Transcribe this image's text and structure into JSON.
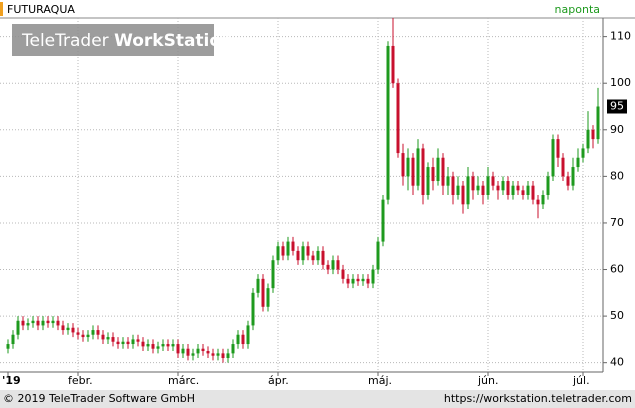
{
  "chart_data": {
    "type": "candlestick",
    "title": "FUTURAQUA",
    "interval": "naponta",
    "logo": {
      "light": "TeleTrader",
      "bold": "WorkStation"
    },
    "footer": {
      "copyright": "© 2019 TeleTrader Software GmbH",
      "url": "https://workstation.teletrader.com"
    },
    "up_color": "#1e9a1e",
    "down_color": "#c8102e",
    "grid": true,
    "ylim": [
      38,
      114
    ],
    "yticks": [
      40,
      50,
      60,
      70,
      80,
      90,
      100,
      110
    ],
    "categories": [
      "'19",
      null,
      null,
      null,
      null,
      null,
      null,
      null,
      null,
      null,
      null,
      null,
      null,
      null,
      "febr.",
      null,
      null,
      null,
      null,
      null,
      null,
      null,
      null,
      null,
      null,
      null,
      null,
      null,
      null,
      null,
      null,
      null,
      null,
      null,
      "márc.",
      null,
      null,
      null,
      null,
      null,
      null,
      null,
      null,
      null,
      null,
      null,
      null,
      null,
      null,
      null,
      null,
      null,
      null,
      null,
      "ápr.",
      null,
      null,
      null,
      null,
      null,
      null,
      null,
      null,
      null,
      null,
      null,
      null,
      null,
      null,
      null,
      null,
      null,
      null,
      null,
      "máj.",
      null,
      null,
      null,
      null,
      null,
      null,
      null,
      null,
      null,
      null,
      null,
      null,
      null,
      null,
      null,
      null,
      null,
      null,
      null,
      null,
      null,
      "jún.",
      null,
      null,
      null,
      null,
      null,
      null,
      null,
      null,
      null,
      null,
      null,
      null,
      null,
      null,
      null,
      null,
      null,
      null,
      "júl.",
      null,
      null,
      null
    ],
    "open": [
      43,
      44,
      46,
      49,
      48,
      48.5,
      49,
      48,
      49,
      48.5,
      49,
      48,
      47,
      47.5,
      46.5,
      46,
      45.5,
      46,
      47,
      46,
      45,
      45.5,
      44.5,
      44,
      44.5,
      44,
      45,
      44.5,
      43.5,
      44,
      43,
      43.5,
      44,
      43.5,
      44,
      42,
      43,
      41.5,
      42,
      43,
      42.5,
      42,
      41.5,
      42,
      41,
      42,
      44,
      46,
      44,
      48,
      55,
      58,
      52,
      56,
      62,
      65,
      63,
      66,
      64,
      62,
      65,
      63,
      62,
      64,
      61,
      60,
      62,
      60,
      58,
      57,
      58,
      57.5,
      58,
      57,
      60,
      66,
      75,
      108,
      100,
      85,
      80,
      84,
      78,
      86,
      76,
      82,
      79,
      84,
      78,
      80,
      76,
      78,
      74,
      80,
      77,
      78,
      76,
      80,
      78,
      77,
      79,
      76,
      78,
      77,
      76,
      78,
      75,
      74,
      76,
      80,
      88,
      84,
      80,
      78,
      82,
      84,
      86,
      90,
      88
    ],
    "high": [
      45,
      47,
      50,
      50,
      49.5,
      50,
      50,
      50,
      50,
      50,
      50,
      49,
      48.5,
      48.5,
      47.5,
      47,
      47,
      48,
      48,
      47,
      46.5,
      46.5,
      45.5,
      45.5,
      45.5,
      46,
      46,
      45.5,
      45,
      45,
      44.5,
      45,
      45,
      45,
      45,
      44,
      44,
      43,
      44,
      44,
      43.5,
      43,
      43,
      43,
      43,
      45,
      47,
      47,
      49,
      56,
      59,
      59,
      57,
      63,
      66,
      66,
      67,
      67,
      65,
      66,
      66,
      64,
      65,
      65,
      62,
      63,
      63,
      61,
      59,
      59,
      59,
      59,
      59,
      61,
      67,
      76,
      109,
      114,
      101,
      87,
      86,
      85,
      88,
      87,
      83,
      84,
      86,
      85,
      82,
      81,
      80,
      79,
      82,
      81,
      80,
      79,
      82,
      81,
      79,
      80,
      80,
      79,
      79,
      78,
      79,
      79,
      76,
      77,
      81,
      89,
      89,
      85,
      81,
      84,
      86,
      87,
      94,
      91,
      99
    ],
    "low": [
      42,
      43,
      45,
      47,
      47,
      47.5,
      47,
      47,
      47.5,
      47.5,
      47,
      46,
      46,
      45.5,
      45,
      44.5,
      44.5,
      45,
      45,
      44,
      44,
      43.5,
      43,
      43,
      43,
      43,
      43.5,
      42.5,
      42.5,
      42,
      42,
      42.5,
      42.5,
      42.5,
      41,
      41,
      40.5,
      40.5,
      41,
      41.5,
      41,
      40.5,
      40.5,
      40,
      40,
      41,
      43,
      43,
      43,
      47,
      54,
      51,
      51,
      55,
      61,
      62,
      62,
      63,
      61,
      61,
      62,
      61,
      61,
      60,
      59,
      59,
      59,
      57,
      56,
      56,
      56.5,
      56.5,
      56,
      56,
      59,
      65,
      74,
      99,
      84,
      78,
      77,
      76,
      77,
      74,
      75,
      77,
      78,
      76,
      76,
      74,
      75,
      72,
      73,
      75,
      76,
      74,
      75,
      77,
      75,
      76,
      75,
      75,
      76,
      75,
      75,
      74,
      71,
      73,
      75,
      79,
      82,
      79,
      77,
      77,
      81,
      83,
      85,
      86,
      87
    ],
    "close": [
      44,
      46,
      49,
      48,
      48.5,
      49,
      48,
      49,
      48.5,
      49,
      48,
      47,
      47.5,
      46.5,
      46,
      45.5,
      46,
      47,
      46,
      45,
      45.5,
      44.5,
      44,
      44.5,
      44,
      45,
      44.5,
      43.5,
      44,
      43,
      43.5,
      44,
      43.5,
      44,
      42,
      43,
      41.5,
      42,
      43,
      42.5,
      42,
      41.5,
      42,
      41,
      42,
      44,
      46,
      44,
      48,
      55,
      58,
      52,
      56,
      62,
      65,
      63,
      66,
      64,
      62,
      65,
      63,
      62,
      64,
      61,
      60,
      62,
      60,
      58,
      57,
      58,
      57.5,
      58,
      57,
      60,
      66,
      75,
      108,
      100,
      85,
      80,
      84,
      78,
      86,
      76,
      82,
      79,
      84,
      78,
      80,
      76,
      78,
      74,
      80,
      77,
      78,
      76,
      80,
      78,
      77,
      79,
      76,
      78,
      77,
      76,
      78,
      75,
      74,
      76,
      80,
      88,
      84,
      80,
      78,
      82,
      84,
      86,
      90,
      88,
      95
    ]
  }
}
